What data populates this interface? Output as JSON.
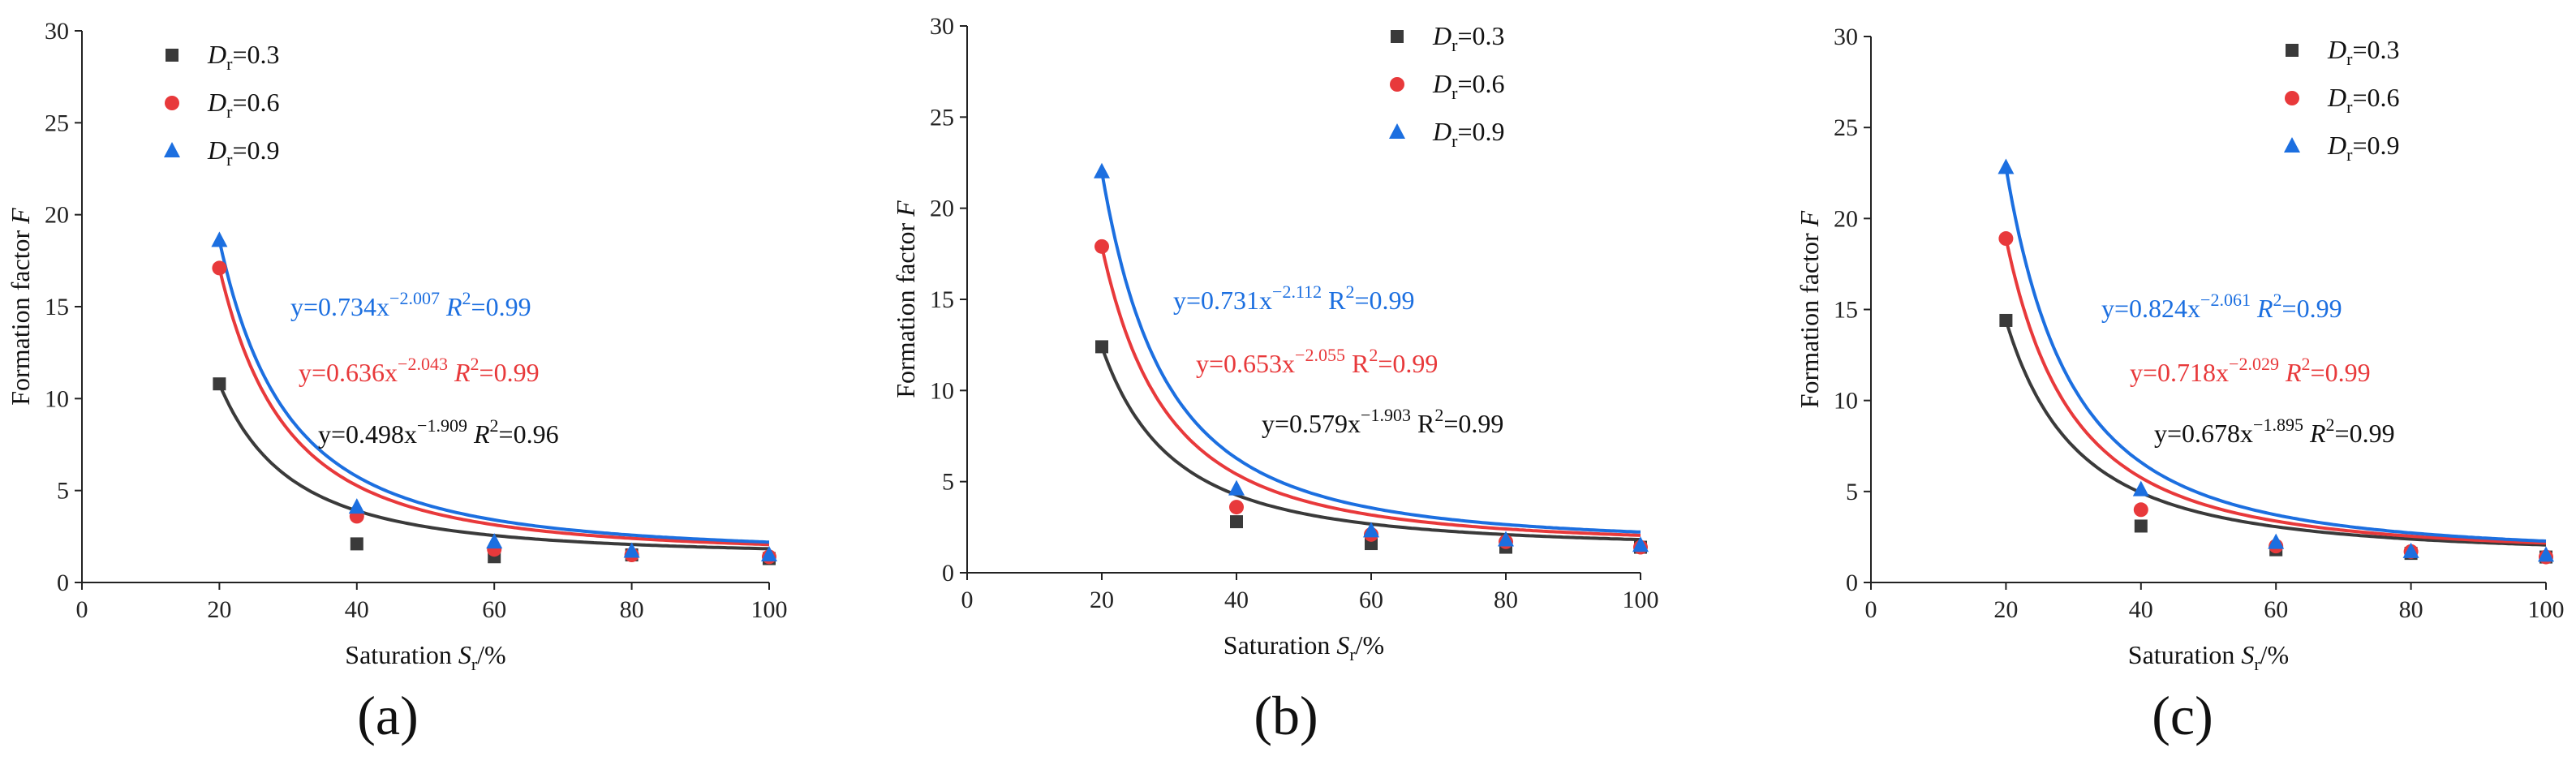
{
  "chart_data": [
    {
      "type": "scatter",
      "panel_label": "(a)",
      "xlabel": {
        "prefix": "Saturation ",
        "sym": "S",
        "sub": "r",
        "suffix": "/%"
      },
      "ylabel": {
        "prefix": "Formation factor ",
        "sym": "F"
      },
      "xlim": [
        0,
        100
      ],
      "ylim": [
        0,
        30
      ],
      "xticks": [
        "0",
        "20",
        "40",
        "60",
        "80",
        "100"
      ],
      "yticks": [
        "0",
        "5",
        "10",
        "15",
        "20",
        "25",
        "30"
      ],
      "x": [
        20,
        40,
        60,
        80,
        100
      ],
      "series": [
        {
          "name": "Dr=0.3",
          "sym": "D",
          "sub": "r",
          "val": "=0.3",
          "marker": "square",
          "color": "#3a3a3a",
          "values": [
            10.8,
            2.1,
            1.4,
            1.5,
            1.3
          ],
          "equation": {
            "lead": "y=0.498x",
            "exp": "−1.909",
            "r2sym": "R",
            "r2sup": "2",
            "r2val": "=0.96",
            "r2_italic": true
          },
          "fit": {
            "a": 0.498,
            "b": -1.909,
            "c": 1.4
          }
        },
        {
          "name": "Dr=0.6",
          "sym": "D",
          "sub": "r",
          "val": "=0.6",
          "marker": "circle",
          "color": "#e8393b",
          "values": [
            17.1,
            3.6,
            1.8,
            1.5,
            1.4
          ],
          "equation": {
            "lead": "y=0.636x",
            "exp": "−2.043",
            "r2sym": "R",
            "r2sup": "2",
            "r2val": "=0.99",
            "r2_italic": true
          },
          "fit": {
            "a": 0.636,
            "b": -2.043,
            "c": 1.48
          }
        },
        {
          "name": "Dr=0.9",
          "sym": "D",
          "sub": "r",
          "val": "=0.9",
          "marker": "triangle",
          "color": "#1c6fe0",
          "values": [
            18.6,
            4.1,
            2.2,
            1.7,
            1.5
          ],
          "equation": {
            "lead": "y=0.734x",
            "exp": "−2.007",
            "r2sym": "R",
            "r2sup": "2",
            "r2val": "=0.99",
            "r2_italic": true
          },
          "fit": {
            "a": 0.734,
            "b": -2.007,
            "c": 1.52
          }
        }
      ]
    },
    {
      "type": "scatter",
      "panel_label": "(b)",
      "xlabel": {
        "prefix": "Saturation ",
        "sym": "S",
        "sub": "r",
        "suffix": "/%"
      },
      "ylabel": {
        "prefix": "Formation factor ",
        "sym": "F"
      },
      "xlim": [
        0,
        100
      ],
      "ylim": [
        0,
        30
      ],
      "xticks": [
        "0",
        "20",
        "40",
        "60",
        "80",
        "100"
      ],
      "yticks": [
        "0",
        "5",
        "10",
        "15",
        "20",
        "25",
        "30"
      ],
      "x": [
        20,
        40,
        60,
        80,
        100
      ],
      "series": [
        {
          "name": "Dr=0.3",
          "sym": "D",
          "sub": "r",
          "val": "=0.3",
          "marker": "square",
          "color": "#3a3a3a",
          "values": [
            12.4,
            2.8,
            1.6,
            1.4,
            1.4
          ],
          "equation": {
            "lead": "y=0.579x",
            "exp": "−1.903",
            "r2sym": "R",
            "r2sup": "2",
            "r2val": "=0.99",
            "r2_italic": false
          },
          "fit": {
            "a": 0.579,
            "b": -1.903,
            "c": 1.3
          }
        },
        {
          "name": "Dr=0.6",
          "sym": "D",
          "sub": "r",
          "val": "=0.6",
          "marker": "circle",
          "color": "#e8393b",
          "values": [
            17.9,
            3.6,
            2.1,
            1.7,
            1.4
          ],
          "equation": {
            "lead": "y=0.653x",
            "exp": "−2.055",
            "r2sym": "R",
            "r2sup": "2",
            "r2val": "=0.99",
            "r2_italic": false
          },
          "fit": {
            "a": 0.653,
            "b": -2.055,
            "c": 1.45
          }
        },
        {
          "name": "Dr=0.9",
          "sym": "D",
          "sub": "r",
          "val": "=0.9",
          "marker": "triangle",
          "color": "#1c6fe0",
          "values": [
            22.0,
            4.6,
            2.3,
            1.8,
            1.5
          ],
          "equation": {
            "lead": "y=0.731x",
            "exp": "−2.112",
            "r2sym": "R",
            "r2sup": "2",
            "r2val": "=0.99",
            "r2_italic": false
          },
          "fit": {
            "a": 0.731,
            "b": -2.112,
            "c": 1.55
          }
        }
      ]
    },
    {
      "type": "scatter",
      "panel_label": "(c)",
      "xlabel": {
        "prefix": "Saturation ",
        "sym": "S",
        "sub": "r",
        "suffix": "/%"
      },
      "ylabel": {
        "prefix": "Formation factor ",
        "sym": "F"
      },
      "xlim": [
        0,
        100
      ],
      "ylim": [
        0,
        30
      ],
      "xticks": [
        "0",
        "20",
        "40",
        "60",
        "80",
        "100"
      ],
      "yticks": [
        "0",
        "5",
        "10",
        "15",
        "20",
        "25",
        "30"
      ],
      "x": [
        20,
        40,
        60,
        80,
        100
      ],
      "series": [
        {
          "name": "Dr=0.3",
          "sym": "D",
          "sub": "r",
          "val": "=0.3",
          "marker": "square",
          "color": "#3a3a3a",
          "values": [
            14.4,
            3.1,
            1.8,
            1.6,
            1.4
          ],
          "equation": {
            "lead": "y=0.678x",
            "exp": "−1.895",
            "r2sym": "R",
            "r2sup": "2",
            "r2val": "=0.99",
            "r2_italic": true
          },
          "fit": {
            "a": 0.678,
            "b": -1.895,
            "c": 1.45
          }
        },
        {
          "name": "Dr=0.6",
          "sym": "D",
          "sub": "r",
          "val": "=0.6",
          "marker": "circle",
          "color": "#e8393b",
          "values": [
            18.9,
            4.0,
            2.0,
            1.7,
            1.4
          ],
          "equation": {
            "lead": "y=0.718x",
            "exp": "−2.029",
            "r2sym": "R",
            "r2sup": "2",
            "r2val": "=0.99",
            "r2_italic": true
          },
          "fit": {
            "a": 0.718,
            "b": -2.029,
            "c": 1.5
          }
        },
        {
          "name": "Dr=0.9",
          "sym": "D",
          "sub": "r",
          "val": "=0.9",
          "marker": "triangle",
          "color": "#1c6fe0",
          "values": [
            22.8,
            5.1,
            2.2,
            1.7,
            1.5
          ],
          "equation": {
            "lead": "y=0.824x",
            "exp": "−2.061",
            "r2sym": "R",
            "r2sup": "2",
            "r2val": "=0.99",
            "r2_italic": true
          },
          "fit": {
            "a": 0.824,
            "b": -2.061,
            "c": 1.5
          }
        }
      ]
    }
  ]
}
